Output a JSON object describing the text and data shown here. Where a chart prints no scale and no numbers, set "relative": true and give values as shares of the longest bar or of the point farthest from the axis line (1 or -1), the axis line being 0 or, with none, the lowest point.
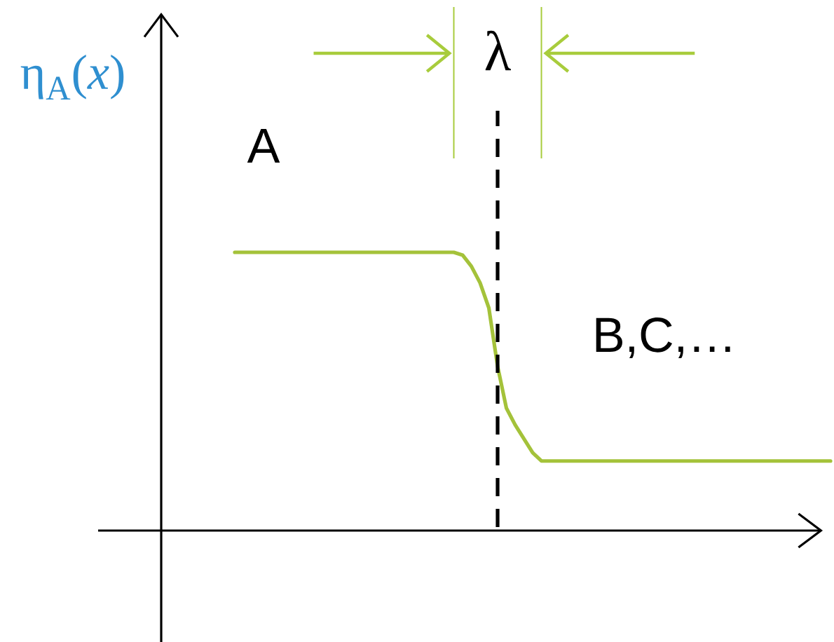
{
  "chart_data": {
    "type": "line",
    "ylabel": "η$_{A}$(*x*)",
    "categories": [
      null,
      null,
      null,
      null,
      null,
      null,
      null,
      null,
      null,
      null,
      null,
      null,
      null,
      null,
      null,
      null,
      null,
      null,
      null,
      null,
      null,
      null,
      null,
      null,
      null,
      null,
      null,
      null,
      null,
      null,
      null,
      null,
      null,
      null,
      null,
      null,
      null,
      null,
      null,
      null,
      null,
      null,
      null,
      null,
      null,
      null,
      null,
      null,
      null,
      null,
      null,
      null,
      null,
      null,
      null,
      null,
      null,
      null,
      null,
      null,
      null,
      null,
      null,
      null,
      null,
      null,
      null,
      null,
      null
    ],
    "values": [
      1,
      1,
      1,
      1,
      1,
      1,
      1,
      1,
      1,
      1,
      1,
      1,
      1,
      1,
      1,
      1,
      1,
      1,
      1,
      1,
      1,
      1,
      1,
      1,
      1,
      1,
      0.99,
      0.95,
      0.89,
      0.8,
      0.59,
      0.44,
      0.38,
      0.33,
      0.28,
      0.25,
      0.25,
      0.25,
      0.25,
      0.25,
      0.25,
      0.25,
      0.25,
      0.25,
      0.25,
      0.25,
      0.25,
      0.25,
      0.25,
      0.25,
      0.25,
      0.25,
      0.25,
      0.25,
      0.25,
      0.25,
      0.25,
      0.25,
      0.25,
      0.25,
      0.25,
      0.25,
      0.25,
      0.25,
      0.25,
      0.25,
      0.25,
      0.25,
      0.25
    ],
    "color": "#a4c23a",
    "relative": true,
    "line_style": "solid",
    "annotations": [
      "A",
      "B,C,…",
      "λ"
    ]
  }
}
